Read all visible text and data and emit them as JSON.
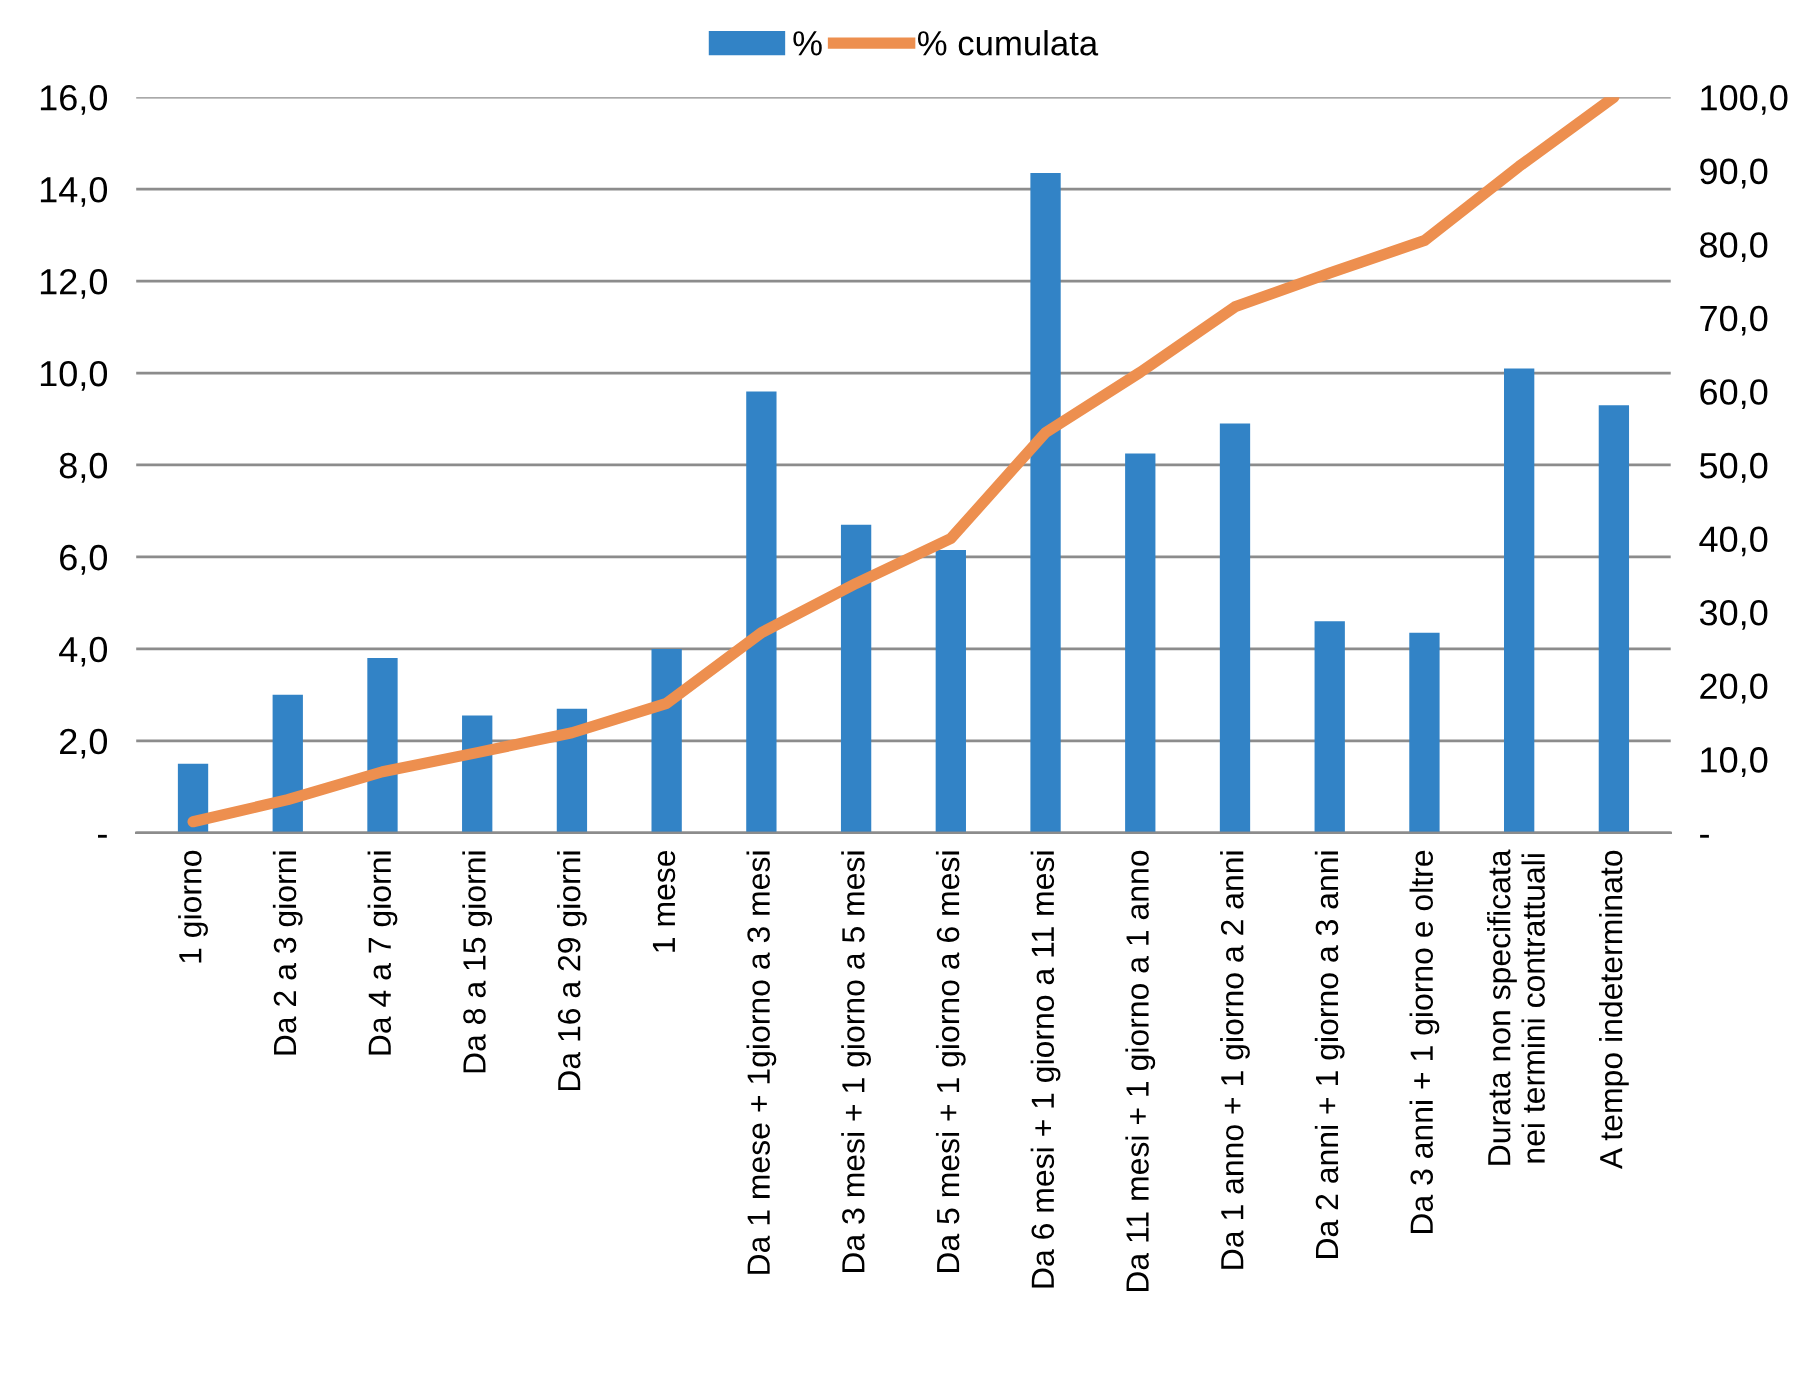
{
  "chart_data": {
    "type": "bar",
    "categories": [
      "1 giorno",
      "Da 2 a 3 giorni",
      "Da 4 a 7 giorni",
      "Da 8 a 15 giorni",
      "Da 16 a 29 giorni",
      "1 mese",
      "Da 1 mese + 1giorno a 3 mesi",
      "Da 3 mesi + 1 giorno a 5 mesi",
      "Da 5 mesi + 1 giorno a 6 mesi",
      "Da 6 mesi + 1 giorno a 11 mesi",
      "Da 11 mesi + 1 giorno a 1 anno",
      "Da 1 anno + 1 giorno a 2 anni",
      "Da 2 anni + 1 giorno a 3 anni",
      "Da 3 anni + 1 giorno e oltre",
      "Durata non specificata\nnei termini contrattuali",
      "A tempo indeterminato"
    ],
    "series": [
      {
        "name": "%",
        "color": "#3283c6",
        "values": [
          1.5,
          3.0,
          3.8,
          2.55,
          2.7,
          4.0,
          9.6,
          6.7,
          6.15,
          14.35,
          8.25,
          8.9,
          4.6,
          4.35,
          10.1,
          9.3
        ]
      },
      {
        "name": "% cumulata",
        "type": "line",
        "axis": "y2",
        "color": "#ed8f4f",
        "values": [
          1.5,
          4.5,
          8.3,
          10.9,
          13.6,
          17.6,
          27.2,
          33.9,
          40.0,
          54.4,
          62.6,
          71.5,
          76.1,
          80.5,
          90.6,
          100.0
        ]
      }
    ],
    "ylim": [
      0,
      16
    ],
    "yticks": [
      {
        "value": 0,
        "label": "-"
      },
      {
        "value": 2,
        "label": "2,0"
      },
      {
        "value": 4,
        "label": "4,0"
      },
      {
        "value": 6,
        "label": "6,0"
      },
      {
        "value": 8,
        "label": "8,0"
      },
      {
        "value": 10,
        "label": "10,0"
      },
      {
        "value": 12,
        "label": "12,0"
      },
      {
        "value": 14,
        "label": "14,0"
      },
      {
        "value": 16,
        "label": "16,0"
      }
    ],
    "y2lim": [
      0,
      100
    ],
    "y2ticks": [
      {
        "value": 0,
        "label": "-"
      },
      {
        "value": 10,
        "label": "10,0"
      },
      {
        "value": 20,
        "label": "20,0"
      },
      {
        "value": 30,
        "label": "30,0"
      },
      {
        "value": 40,
        "label": "40,0"
      },
      {
        "value": 50,
        "label": "50,0"
      },
      {
        "value": 60,
        "label": "60,0"
      },
      {
        "value": 70,
        "label": "70,0"
      },
      {
        "value": 80,
        "label": "80,0"
      },
      {
        "value": 90,
        "label": "90,0"
      },
      {
        "value": 100,
        "label": "100,0"
      }
    ],
    "grid": "y",
    "legend": "top"
  }
}
